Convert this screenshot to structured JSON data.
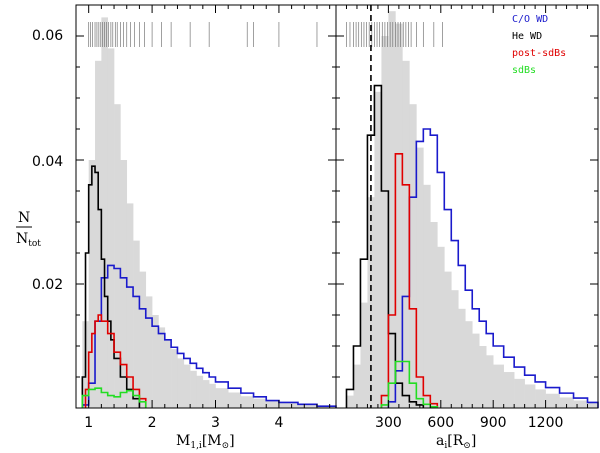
{
  "ylabel": {
    "top": "N",
    "bottom": "N",
    "bottom_sub": "tot"
  },
  "y_ticks": [
    "0.02",
    "0.04",
    "0.06"
  ],
  "legend": [
    {
      "label": "C/O WD",
      "color": "#1a1acc"
    },
    {
      "label": "He WD",
      "color": "#000000"
    },
    {
      "label": "post-sdBs",
      "color": "#e00000"
    },
    {
      "label": "sdBs",
      "color": "#22dd22"
    }
  ],
  "chart_data": [
    {
      "type": "histogram",
      "xlabel": {
        "main": "M",
        "sub": "1,i",
        "unit_main": "M",
        "unit_sub": "⊙"
      },
      "xlim": [
        0.8,
        4.9
      ],
      "ylim": [
        0.0,
        0.065
      ],
      "x_ticks": [
        1,
        2,
        3,
        4
      ],
      "grid": false,
      "total": {
        "name": "",
        "color": "#d9d9d9",
        "edges": [
          0.9,
          1.0,
          1.1,
          1.2,
          1.3,
          1.4,
          1.5,
          1.6,
          1.7,
          1.8,
          1.9,
          2.0,
          2.1,
          2.2,
          2.3,
          2.4,
          2.5,
          2.6,
          2.7,
          2.8,
          2.9,
          3.0,
          3.2,
          3.4,
          3.6,
          3.8,
          4.0,
          4.3,
          4.6,
          4.9
        ],
        "values": [
          0.014,
          0.04,
          0.056,
          0.063,
          0.058,
          0.049,
          0.04,
          0.033,
          0.027,
          0.022,
          0.018,
          0.015,
          0.013,
          0.011,
          0.0095,
          0.008,
          0.007,
          0.006,
          0.0052,
          0.0045,
          0.0039,
          0.0032,
          0.0025,
          0.0019,
          0.0015,
          0.0011,
          0.0008,
          0.0005,
          0.0003
        ]
      },
      "series": [
        {
          "name": "C/O WD",
          "color": "#1a1acc",
          "edges": [
            0.9,
            1.0,
            1.1,
            1.2,
            1.3,
            1.4,
            1.5,
            1.6,
            1.7,
            1.8,
            1.9,
            2.0,
            2.1,
            2.2,
            2.3,
            2.4,
            2.5,
            2.6,
            2.7,
            2.8,
            2.9,
            3.0,
            3.2,
            3.4,
            3.6,
            3.8,
            4.0,
            4.3,
            4.6,
            4.9
          ],
          "values": [
            0.0005,
            0.004,
            0.014,
            0.021,
            0.023,
            0.0225,
            0.021,
            0.0195,
            0.018,
            0.016,
            0.0145,
            0.0132,
            0.012,
            0.011,
            0.0098,
            0.0088,
            0.008,
            0.0072,
            0.0064,
            0.0057,
            0.005,
            0.0042,
            0.0032,
            0.0024,
            0.0018,
            0.0012,
            0.0009,
            0.0006,
            0.0003
          ]
        },
        {
          "name": "He WD",
          "color": "#000000",
          "edges": [
            0.9,
            0.95,
            1.0,
            1.05,
            1.1,
            1.15,
            1.2,
            1.25,
            1.3,
            1.35,
            1.4,
            1.5,
            1.6,
            1.7,
            1.8
          ],
          "values": [
            0.005,
            0.025,
            0.036,
            0.039,
            0.038,
            0.032,
            0.024,
            0.018,
            0.014,
            0.011,
            0.008,
            0.005,
            0.003,
            0.0015
          ]
        },
        {
          "name": "post-sdBs",
          "color": "#e00000",
          "edges": [
            0.95,
            1.0,
            1.05,
            1.1,
            1.15,
            1.2,
            1.3,
            1.4,
            1.5,
            1.6,
            1.7,
            1.8,
            1.9
          ],
          "values": [
            0.003,
            0.009,
            0.012,
            0.014,
            0.015,
            0.014,
            0.012,
            0.009,
            0.007,
            0.005,
            0.003,
            0.0015
          ]
        },
        {
          "name": "sdBs",
          "color": "#22dd22",
          "edges": [
            0.9,
            1.0,
            1.1,
            1.2,
            1.3,
            1.4,
            1.5,
            1.6,
            1.7,
            1.8,
            1.9
          ],
          "values": [
            0.002,
            0.003,
            0.0032,
            0.0025,
            0.002,
            0.0018,
            0.0025,
            0.0028,
            0.002,
            0.001
          ]
        }
      ],
      "rug": [
        1.0,
        1.03,
        1.06,
        1.1,
        1.13,
        1.16,
        1.19,
        1.22,
        1.25,
        1.28,
        1.31,
        1.35,
        1.38,
        1.42,
        1.45,
        1.5,
        1.55,
        1.6,
        1.66,
        1.72,
        1.8,
        1.88,
        2.0,
        2.15,
        2.3,
        2.6,
        2.9,
        3.5,
        3.6,
        4.0,
        4.6
      ],
      "vline": null
    },
    {
      "type": "histogram",
      "xlabel": {
        "main": "a",
        "sub": "i",
        "unit_main": "R",
        "unit_sub": "⊙"
      },
      "xlim": [
        0,
        1500
      ],
      "ylim": [
        0.0,
        0.065
      ],
      "x_ticks": [
        300,
        600,
        900,
        1200
      ],
      "grid": false,
      "total": {
        "name": "",
        "color": "#d9d9d9",
        "edges": [
          60,
          100,
          140,
          180,
          220,
          260,
          300,
          340,
          380,
          420,
          460,
          500,
          540,
          580,
          620,
          660,
          700,
          740,
          780,
          820,
          860,
          900,
          960,
          1020,
          1080,
          1140,
          1200,
          1280,
          1360,
          1440,
          1500
        ],
        "values": [
          0.002,
          0.007,
          0.017,
          0.034,
          0.051,
          0.06,
          0.064,
          0.062,
          0.056,
          0.049,
          0.042,
          0.036,
          0.03,
          0.026,
          0.022,
          0.019,
          0.016,
          0.014,
          0.012,
          0.01,
          0.0085,
          0.007,
          0.0058,
          0.0047,
          0.0038,
          0.003,
          0.0023,
          0.0017,
          0.0012,
          0.0008
        ]
      },
      "series": [
        {
          "name": "C/O WD",
          "color": "#1a1acc",
          "edges": [
            300,
            340,
            380,
            420,
            460,
            500,
            540,
            580,
            620,
            660,
            700,
            740,
            780,
            820,
            860,
            900,
            960,
            1020,
            1080,
            1140,
            1200,
            1280,
            1360,
            1440,
            1500
          ],
          "values": [
            0.001,
            0.006,
            0.018,
            0.034,
            0.043,
            0.045,
            0.044,
            0.038,
            0.032,
            0.027,
            0.023,
            0.019,
            0.016,
            0.014,
            0.012,
            0.01,
            0.0082,
            0.0066,
            0.0053,
            0.0042,
            0.0033,
            0.0024,
            0.0016,
            0.0009
          ]
        },
        {
          "name": "He WD",
          "color": "#000000",
          "edges": [
            60,
            100,
            140,
            180,
            220,
            260,
            300,
            340,
            380,
            420,
            460,
            500
          ],
          "values": [
            0.003,
            0.01,
            0.024,
            0.044,
            0.052,
            0.035,
            0.012,
            0.004,
            0.002,
            0.001,
            0.0005
          ]
        },
        {
          "name": "post-sdBs",
          "color": "#e00000",
          "edges": [
            260,
            300,
            340,
            380,
            420,
            460,
            500,
            540,
            580
          ],
          "values": [
            0.002,
            0.015,
            0.041,
            0.036,
            0.016,
            0.005,
            0.002,
            0.0007
          ]
        },
        {
          "name": "sdBs",
          "color": "#22dd22",
          "edges": [
            260,
            300,
            340,
            380,
            420,
            460,
            500,
            540,
            580
          ],
          "values": [
            0.0005,
            0.004,
            0.0075,
            0.0075,
            0.004,
            0.0015,
            0.0006,
            0.0002
          ]
        }
      ],
      "rug": [
        60,
        80,
        100,
        115,
        130,
        145,
        160,
        175,
        190,
        205,
        220,
        235,
        250,
        265,
        280,
        295,
        310,
        325,
        340,
        355,
        370,
        385,
        400,
        415,
        430,
        460,
        500,
        560,
        610
      ],
      "vline": 200
    }
  ]
}
